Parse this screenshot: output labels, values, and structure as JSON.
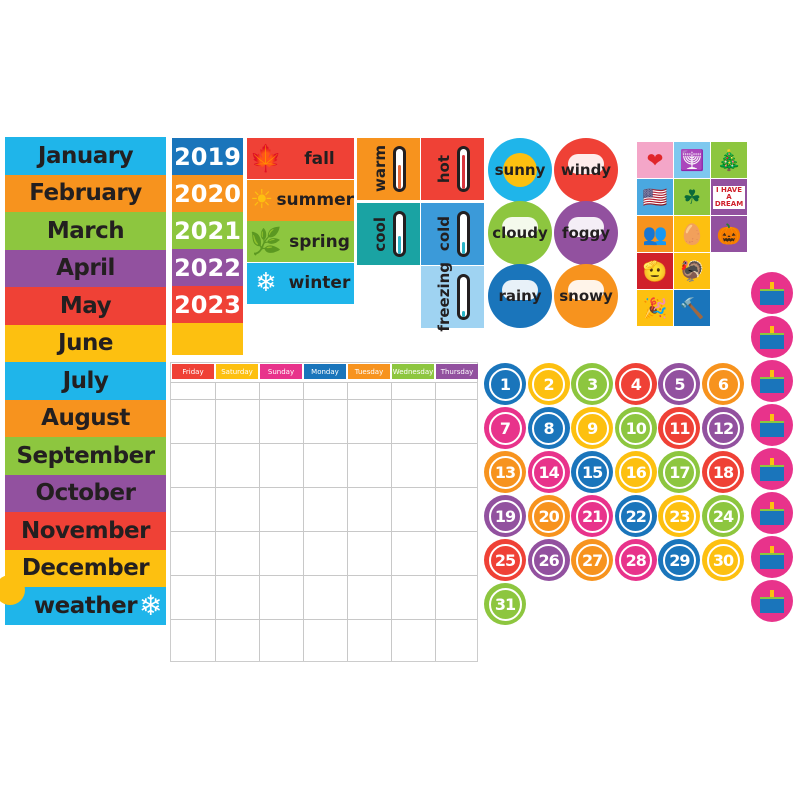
{
  "months": [
    {
      "label": "January",
      "color": "#1fb5ea"
    },
    {
      "label": "February",
      "color": "#f7931e"
    },
    {
      "label": "March",
      "color": "#8dc63f"
    },
    {
      "label": "April",
      "color": "#92519f"
    },
    {
      "label": "May",
      "color": "#ef4136"
    },
    {
      "label": "June",
      "color": "#fdc010"
    },
    {
      "label": "July",
      "color": "#1fb5ea"
    },
    {
      "label": "August",
      "color": "#f7931e"
    },
    {
      "label": "September",
      "color": "#8dc63f"
    },
    {
      "label": "October",
      "color": "#92519f"
    },
    {
      "label": "November",
      "color": "#ef4136"
    },
    {
      "label": "December",
      "color": "#fdc010"
    },
    {
      "label": "weather",
      "color": "#1fb5ea"
    }
  ],
  "years": [
    {
      "label": "2019",
      "color": "#1a75bb"
    },
    {
      "label": "2020",
      "color": "#f7931e"
    },
    {
      "label": "2021",
      "color": "#8dc63f"
    },
    {
      "label": "2022",
      "color": "#92519f"
    },
    {
      "label": "2023",
      "color": "#ef4136"
    },
    {
      "label": "",
      "color": "#fdc010"
    }
  ],
  "seasons": [
    {
      "label": "fall",
      "icon": "leaf-icon",
      "glyph": "🍁",
      "color": "#ef4136"
    },
    {
      "label": "summer",
      "icon": "sun-icon",
      "glyph": "☀",
      "color": "#f7931e"
    },
    {
      "label": "spring",
      "icon": "leaves-icon",
      "glyph": "🌿",
      "color": "#8dc63f"
    },
    {
      "label": "winter",
      "icon": "snowflake-icon",
      "glyph": "❄",
      "color": "#1fb5ea"
    }
  ],
  "temperatures": [
    {
      "label": "warm",
      "color": "#f7931e",
      "level": 0.6,
      "fill": "#e8683a"
    },
    {
      "label": "hot",
      "color": "#ef4136",
      "level": 0.85,
      "fill": "#d9363e"
    },
    {
      "label": "cool",
      "color": "#1aa3a3",
      "level": 0.45,
      "fill": "#2bb5c8"
    },
    {
      "label": "cold",
      "color": "#3b9ad9",
      "level": 0.3,
      "fill": "#2bb5c8"
    },
    {
      "label": "freezing",
      "color": "#9fd3f2",
      "level": 0.15,
      "fill": "#2bb5c8"
    }
  ],
  "weather": [
    {
      "label": "sunny",
      "color": "#1fb5ea"
    },
    {
      "label": "windy",
      "color": "#ef4136"
    },
    {
      "label": "cloudy",
      "color": "#8dc63f"
    },
    {
      "label": "foggy",
      "color": "#92519f"
    },
    {
      "label": "rainy",
      "color": "#1a75bb"
    },
    {
      "label": "snowy",
      "color": "#f7931e"
    }
  ],
  "holidays": [
    {
      "icon": "hearts-icon",
      "glyph": "❤",
      "bg": "#f4a6c8",
      "fg": "#e0262a"
    },
    {
      "icon": "menorah-icon",
      "glyph": "🕎",
      "bg": "#7ec8ef",
      "fg": "#1a2a4a"
    },
    {
      "icon": "christmas-tree-icon",
      "glyph": "🎄",
      "bg": "#8dc63f",
      "fg": "#0a7a3a"
    },
    {
      "icon": "american-flag-icon",
      "glyph": "🇺🇸",
      "bg": "#4aa8e0",
      "fg": "#d0202a"
    },
    {
      "icon": "clover-icon",
      "glyph": "☘",
      "bg": "#8dc63f",
      "fg": "#0a6a3a"
    },
    {
      "icon": "dream-sign-icon",
      "glyph": "",
      "text": "I HAVE A DREAM",
      "bg": "#92519f",
      "fg": "#d0202a"
    },
    {
      "icon": "silhouettes-icon",
      "glyph": "👥",
      "bg": "#f7931e",
      "fg": "#000"
    },
    {
      "icon": "easter-egg-icon",
      "glyph": "🥚",
      "bg": "#fdc010",
      "fg": "#d06a2a"
    },
    {
      "icon": "pumpkin-icon",
      "glyph": "🎃",
      "bg": "#92519f",
      "fg": "#f7931e"
    },
    {
      "icon": "soldier-salute-icon",
      "glyph": "🫡",
      "bg": "#d0202a",
      "fg": "#000"
    },
    {
      "icon": "turkey-icon",
      "glyph": "🦃",
      "bg": "#fdc010",
      "fg": "#7a4a20"
    },
    {
      "icon": "party-hat-icon",
      "glyph": "🎉",
      "bg": "#fdc010",
      "fg": "#d0202a"
    },
    {
      "icon": "hammer-icon",
      "glyph": "🔨",
      "bg": "#1a75bb",
      "fg": "#d0202a"
    }
  ],
  "calendar": {
    "days": [
      {
        "label": "Friday",
        "color": "#ef4136"
      },
      {
        "label": "Saturday",
        "color": "#fdc010"
      },
      {
        "label": "Sunday",
        "color": "#e8338b"
      },
      {
        "label": "Monday",
        "color": "#1a75bb"
      },
      {
        "label": "Tuesday",
        "color": "#f7931e"
      },
      {
        "label": "Wednesday",
        "color": "#8dc63f"
      },
      {
        "label": "Thursday",
        "color": "#92519f"
      }
    ]
  },
  "number_colors": [
    "#1a75bb",
    "#fdc010",
    "#8dc63f",
    "#ef4136",
    "#92519f",
    "#f7931e",
    "#e8338b"
  ],
  "numbers": [
    "1",
    "2",
    "3",
    "4",
    "5",
    "6",
    "7",
    "8",
    "9",
    "10",
    "11",
    "12",
    "13",
    "14",
    "15",
    "16",
    "17",
    "18",
    "19",
    "20",
    "21",
    "22",
    "23",
    "24",
    "25",
    "26",
    "27",
    "28",
    "29",
    "30",
    "31"
  ],
  "birthday_count": 8
}
